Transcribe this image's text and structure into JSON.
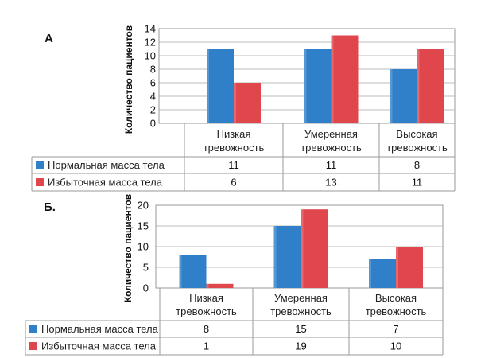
{
  "chart_data": [
    {
      "type": "bar",
      "panel_label": "А",
      "ylabel": "Количество пациентов",
      "ylim": [
        0,
        14
      ],
      "yticks": [
        0,
        2,
        4,
        6,
        8,
        10,
        12,
        14
      ],
      "grid": true,
      "categories": [
        [
          "Низкая",
          "тревожность"
        ],
        [
          "Умеренная",
          "тревожность"
        ],
        [
          "Высокая",
          "тревожность"
        ]
      ],
      "series": [
        {
          "name": "Нормальная масса тела",
          "color": "#2f80c8",
          "values": [
            11,
            11,
            8
          ]
        },
        {
          "name": "Избыточная масса тела",
          "color": "#e0474c",
          "values": [
            6,
            13,
            11
          ]
        }
      ]
    },
    {
      "type": "bar",
      "panel_label": "Б.",
      "ylabel": "Количество пациентов",
      "ylim": [
        0,
        20
      ],
      "yticks": [
        0,
        5,
        10,
        15,
        20
      ],
      "grid": true,
      "categories": [
        [
          "Низкая",
          "тревожность"
        ],
        [
          "Умеренная",
          "тревожность"
        ],
        [
          "Высокая",
          "тревожность"
        ]
      ],
      "series": [
        {
          "name": "Нормальная масса тела",
          "color": "#2f80c8",
          "values": [
            8,
            15,
            7
          ]
        },
        {
          "name": "Избыточная масса тела",
          "color": "#e0474c",
          "values": [
            1,
            19,
            10
          ]
        }
      ]
    }
  ]
}
